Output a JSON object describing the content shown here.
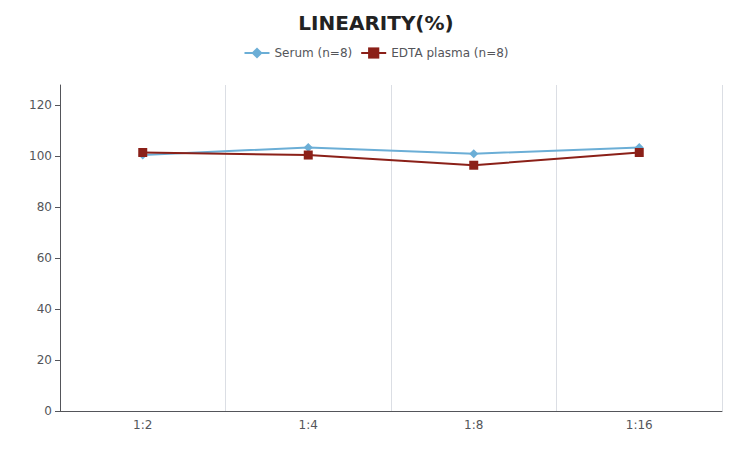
{
  "chart_data": {
    "type": "line",
    "title": "LINEARITY(%)",
    "categories": [
      "1:2",
      "1:4",
      "1:8",
      "1:16"
    ],
    "series": [
      {
        "name": "Serum (n=8)",
        "color": "#6baed6",
        "marker": "diamond",
        "values": [
          100.5,
          103.5,
          101.0,
          103.5
        ]
      },
      {
        "name": "EDTA plasma (n=8)",
        "color": "#8B2018",
        "marker": "square",
        "values": [
          101.5,
          100.5,
          96.5,
          101.5
        ]
      }
    ],
    "ylim": [
      0,
      128
    ],
    "yticks": [
      0,
      20,
      40,
      60,
      80,
      100,
      120
    ],
    "grid": "x",
    "legend": "top"
  }
}
